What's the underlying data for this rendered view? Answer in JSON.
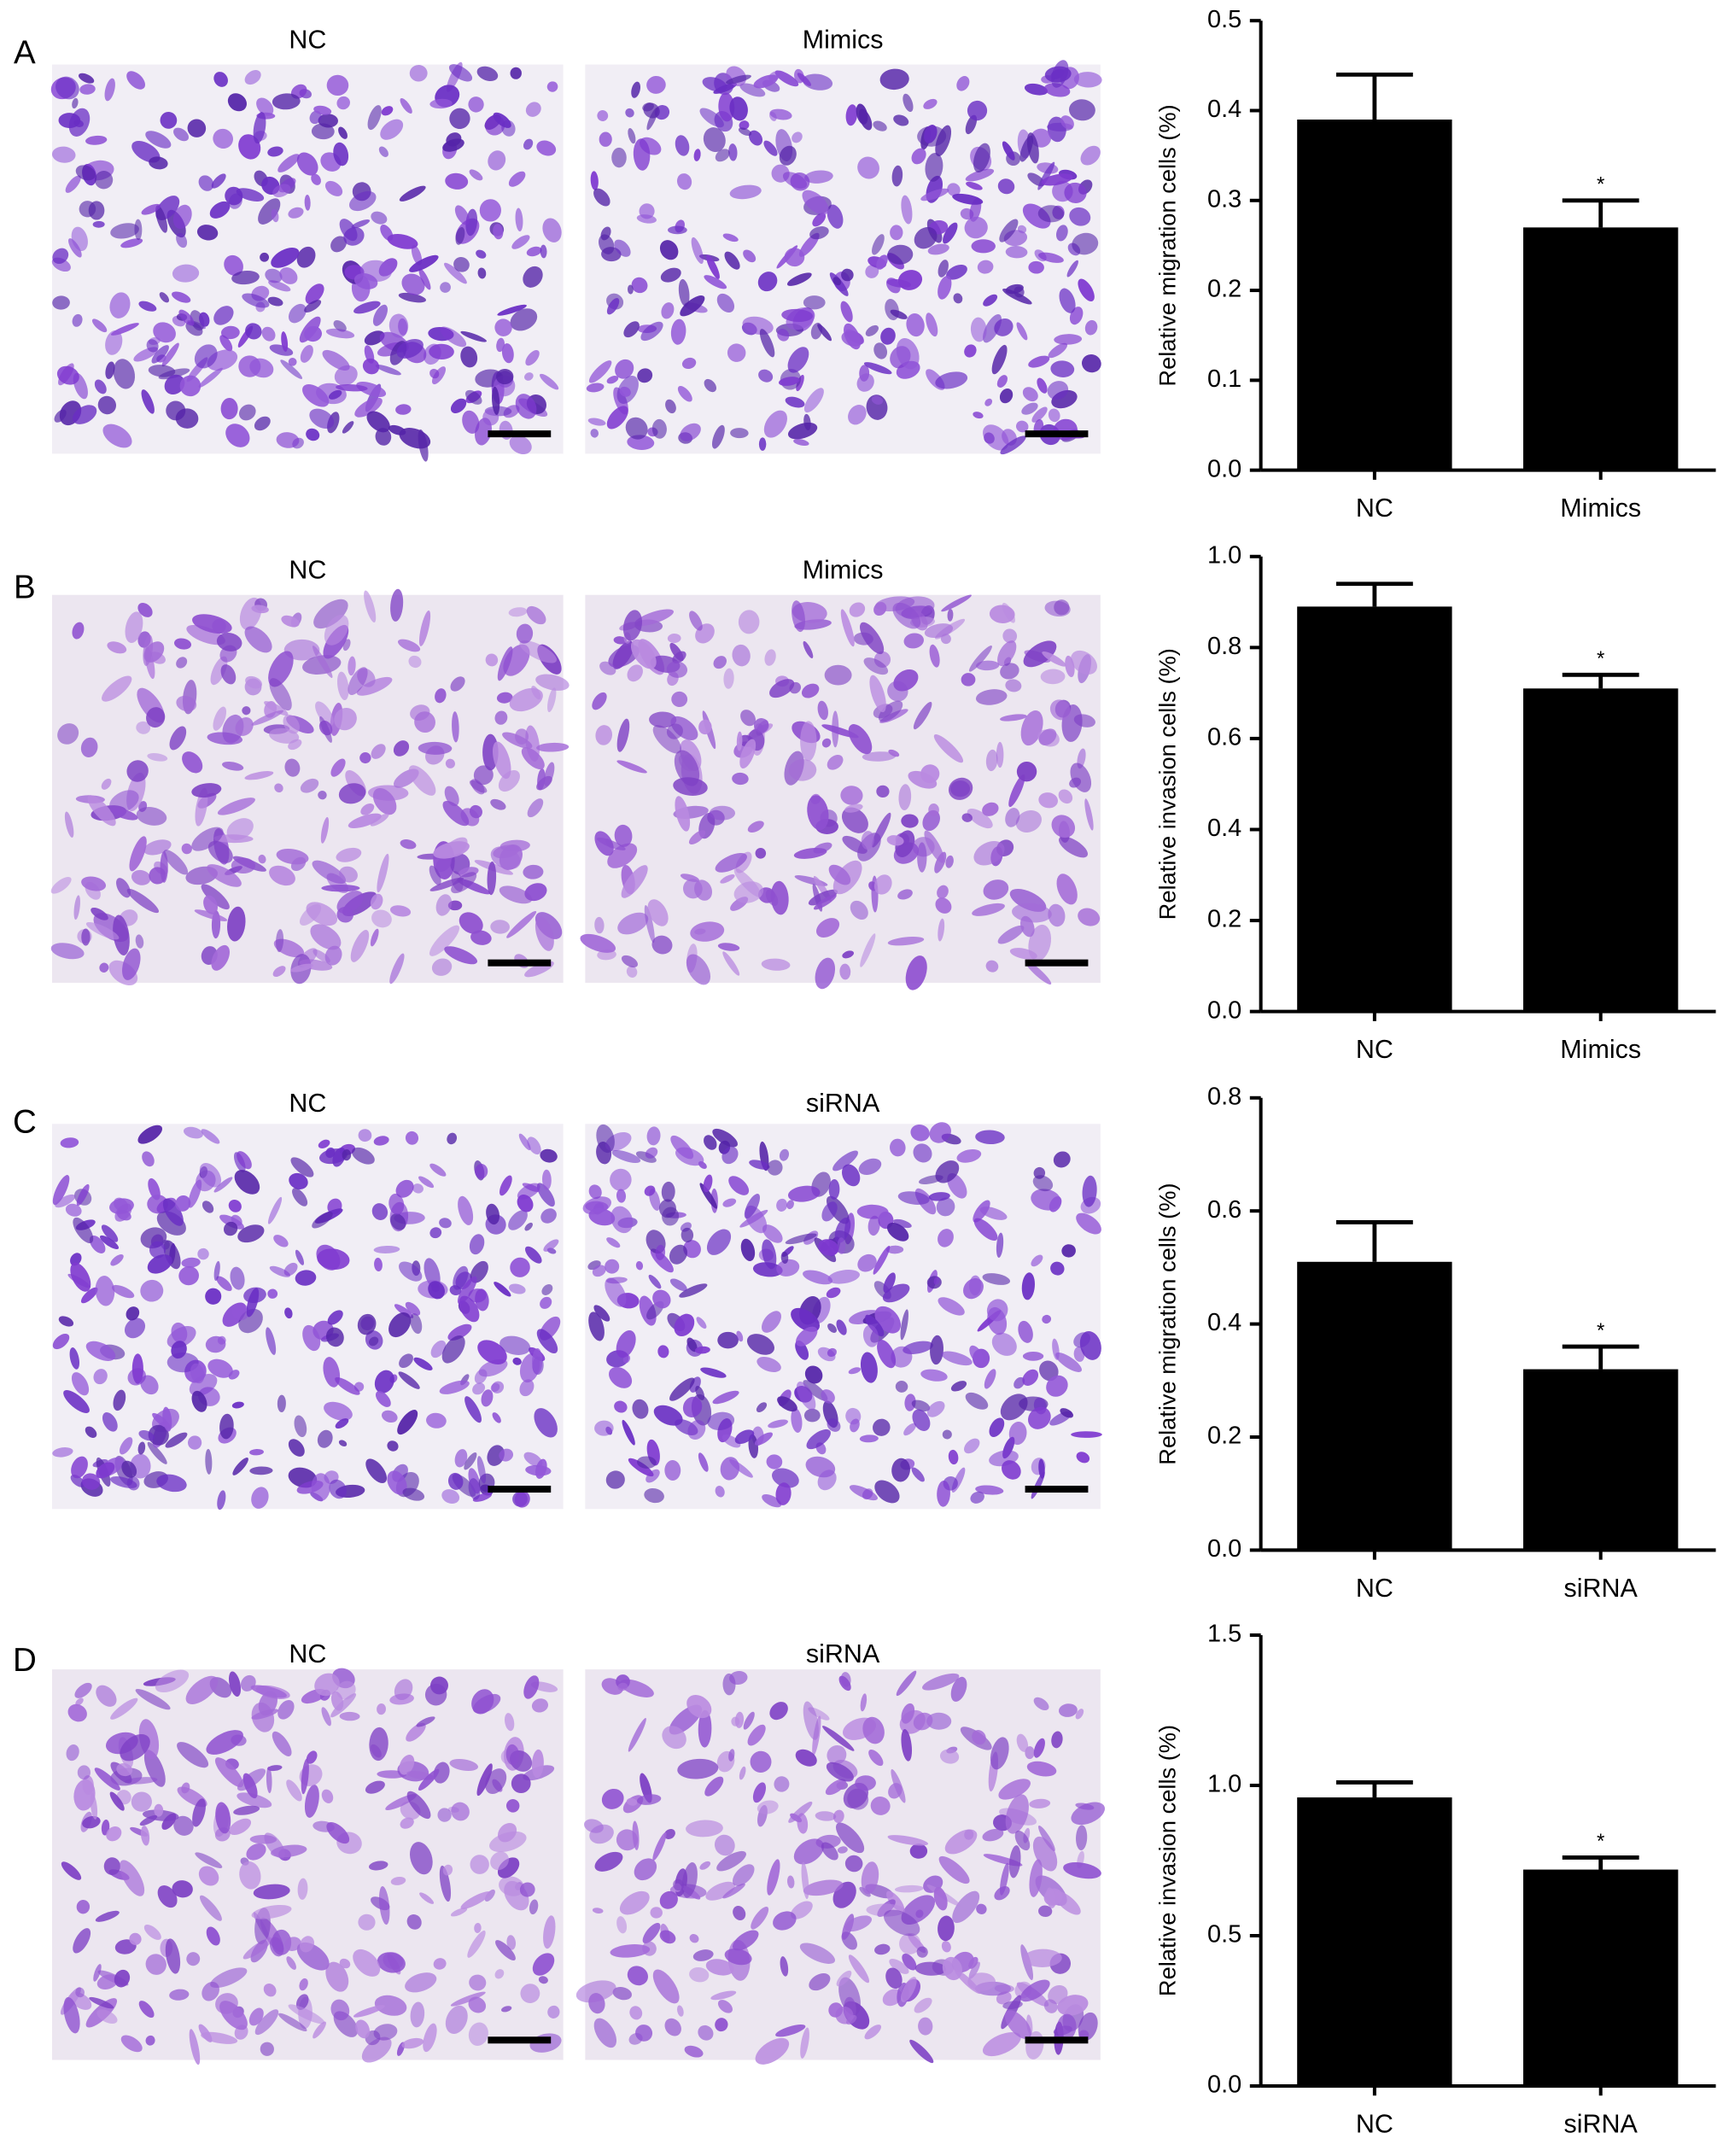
{
  "panels": [
    {
      "label": "A",
      "images": [
        "NC",
        "Mimics"
      ]
    },
    {
      "label": "B",
      "images": [
        "NC",
        "Mimics"
      ]
    },
    {
      "label": "C",
      "images": [
        "NC",
        "siRNA"
      ]
    },
    {
      "label": "D",
      "images": [
        "NC",
        "siRNA"
      ]
    }
  ],
  "chart_data": [
    {
      "type": "bar",
      "ylabel": "Relative migration cells (%)",
      "categories": [
        "NC",
        "Mimics"
      ],
      "values": [
        0.39,
        0.27
      ],
      "errors": [
        0.05,
        0.03
      ],
      "color": "#000000",
      "annotation": "*",
      "ylim": [
        0,
        0.5
      ],
      "yticks": [
        {
          "value": 0,
          "label": "0.0"
        },
        0.1,
        0.2,
        0.3,
        0.4,
        0.5
      ]
    },
    {
      "type": "bar",
      "ylabel": "Relative invasion cells (%)",
      "categories": [
        "NC",
        "Mimics"
      ],
      "values": [
        0.89,
        0.71
      ],
      "errors": [
        0.05,
        0.03
      ],
      "color": "#000000",
      "annotation": "*",
      "ylim": [
        0,
        1.0
      ],
      "yticks": [
        {
          "value": 0,
          "label": "0.0"
        },
        0.2,
        0.4,
        0.6,
        0.8,
        {
          "value": 1,
          "label": "1.0"
        }
      ]
    },
    {
      "type": "bar",
      "ylabel": "Relative migration cells (%)",
      "categories": [
        "NC",
        "siRNA"
      ],
      "values": [
        0.51,
        0.32
      ],
      "errors": [
        0.07,
        0.04
      ],
      "color": "#000000",
      "annotation": "*",
      "ylim": [
        0,
        0.8
      ],
      "yticks": [
        {
          "value": 0,
          "label": "0.0"
        },
        0.2,
        0.4,
        0.6,
        0.8
      ]
    },
    {
      "type": "bar",
      "ylabel": "Relative invasion cells (%)",
      "categories": [
        "NC",
        "siRNA"
      ],
      "values": [
        0.96,
        0.72
      ],
      "errors": [
        0.05,
        0.04
      ],
      "color": "#000000",
      "annotation": "*",
      "ylim": [
        0,
        1.5
      ],
      "yticks": [
        {
          "value": 0,
          "label": "0.0"
        },
        0.5,
        {
          "value": 1,
          "label": "1.0"
        },
        1.5
      ]
    }
  ]
}
